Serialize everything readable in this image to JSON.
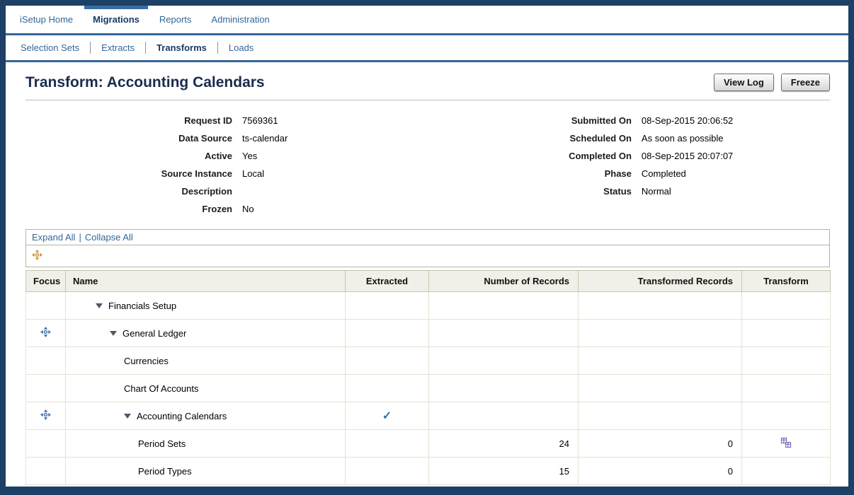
{
  "colors": {
    "accent_blue": "#336699",
    "frame_navy": "#1e4066",
    "focus_blue": "#3f6fa8",
    "focus_gold": "#c78e2d",
    "check_blue": "#2f6fa7",
    "transform_purple": "#7d6fb8"
  },
  "nav": {
    "tabs": [
      {
        "label": "iSetup Home",
        "active": false
      },
      {
        "label": "Migrations",
        "active": true
      },
      {
        "label": "Reports",
        "active": false
      },
      {
        "label": "Administration",
        "active": false
      }
    ],
    "subtabs": [
      {
        "label": "Selection Sets",
        "active": false
      },
      {
        "label": "Extracts",
        "active": false
      },
      {
        "label": "Transforms",
        "active": true
      },
      {
        "label": "Loads",
        "active": false
      }
    ]
  },
  "header": {
    "title": "Transform: Accounting Calendars",
    "buttons": [
      {
        "label": "View Log"
      },
      {
        "label": "Freeze"
      }
    ]
  },
  "details": {
    "left": [
      {
        "label": "Request ID",
        "value": "7569361"
      },
      {
        "label": "Data Source",
        "value": "ts-calendar"
      },
      {
        "label": "Active",
        "value": "Yes"
      },
      {
        "label": "Source Instance",
        "value": "Local"
      },
      {
        "label": "Description",
        "value": ""
      },
      {
        "label": "Frozen",
        "value": "No"
      }
    ],
    "right": [
      {
        "label": "Submitted On",
        "value": "08-Sep-2015 20:06:52"
      },
      {
        "label": "Scheduled On",
        "value": "As soon as possible"
      },
      {
        "label": "Completed On",
        "value": "08-Sep-2015 20:07:07"
      },
      {
        "label": "Phase",
        "value": "Completed"
      },
      {
        "label": "Status",
        "value": "Normal"
      }
    ]
  },
  "tree_controls": {
    "expand_all": "Expand All",
    "separator": "|",
    "collapse_all": "Collapse All"
  },
  "icons": {
    "focus": "compass-crosshair",
    "expand": "triangle-down",
    "check_glyph": "✓",
    "transform": "grid-tables"
  },
  "table": {
    "columns": [
      "Focus",
      "Name",
      "Extracted",
      "Number of Records",
      "Transformed Records",
      "Transform"
    ],
    "rows": [
      {
        "focus": false,
        "expandable": true,
        "indent": 0,
        "name": "Financials Setup",
        "extracted": false,
        "records": "",
        "transformed": "",
        "transform": false
      },
      {
        "focus": true,
        "expandable": true,
        "indent": 1,
        "name": "General Ledger",
        "extracted": false,
        "records": "",
        "transformed": "",
        "transform": false
      },
      {
        "focus": false,
        "expandable": false,
        "indent": 2,
        "name": "Currencies",
        "extracted": false,
        "records": "",
        "transformed": "",
        "transform": false
      },
      {
        "focus": false,
        "expandable": false,
        "indent": 2,
        "name": "Chart Of Accounts",
        "extracted": false,
        "records": "",
        "transformed": "",
        "transform": false
      },
      {
        "focus": true,
        "expandable": true,
        "indent": 2,
        "name": "Accounting Calendars",
        "extracted": true,
        "records": "",
        "transformed": "",
        "transform": false
      },
      {
        "focus": false,
        "expandable": false,
        "indent": 3,
        "name": "Period Sets",
        "extracted": false,
        "records": "24",
        "transformed": "0",
        "transform": true
      },
      {
        "focus": false,
        "expandable": false,
        "indent": 3,
        "name": "Period Types",
        "extracted": false,
        "records": "15",
        "transformed": "0",
        "transform": false
      }
    ]
  }
}
